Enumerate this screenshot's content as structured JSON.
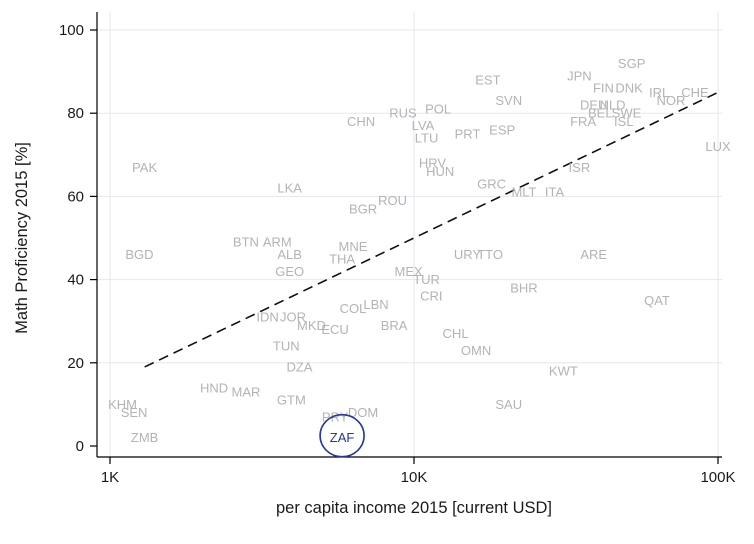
{
  "chart_data": {
    "type": "scatter",
    "title": "",
    "xlabel": "per capita income 2015 [current USD]",
    "ylabel": "Math Proficiency 2015 [%]",
    "x_scale": "log",
    "xlim": [
      1000,
      100000
    ],
    "ylim": [
      0,
      100
    ],
    "grid": true,
    "marker_style": "country-code-text",
    "x_ticks": [
      {
        "value": 1000,
        "label": "1K"
      },
      {
        "value": 10000,
        "label": "10K"
      },
      {
        "value": 100000,
        "label": "100K"
      }
    ],
    "y_ticks": [
      {
        "value": 0,
        "label": "0"
      },
      {
        "value": 20,
        "label": "20"
      },
      {
        "value": 40,
        "label": "40"
      },
      {
        "value": 60,
        "label": "60"
      },
      {
        "value": 80,
        "label": "80"
      },
      {
        "value": 100,
        "label": "100"
      }
    ],
    "colors": {
      "label": "#b3b3b8",
      "highlight": "#2438a0",
      "grid": "#e4e7ef",
      "axis": "#000000",
      "tick_text": "#1a1a1a",
      "title_text": "#1a1a1a"
    },
    "trend_line": {
      "style": "dashed",
      "color": "#111111",
      "points": [
        {
          "income": 1300,
          "math": 19
        },
        {
          "income": 100000,
          "math": 85
        }
      ]
    },
    "highlight": {
      "code": "ZAF",
      "note": "circled"
    },
    "points": [
      {
        "code": "SGP",
        "income": 52000,
        "math": 92
      },
      {
        "code": "JPN",
        "income": 35000,
        "math": 89
      },
      {
        "code": "EST",
        "income": 17500,
        "math": 88
      },
      {
        "code": "FIN",
        "income": 42000,
        "math": 86
      },
      {
        "code": "DNK",
        "income": 51000,
        "math": 86
      },
      {
        "code": "IRL",
        "income": 64000,
        "math": 85
      },
      {
        "code": "CHE",
        "income": 84000,
        "math": 85
      },
      {
        "code": "NOR",
        "income": 70000,
        "math": 83
      },
      {
        "code": "SVN",
        "income": 20500,
        "math": 83
      },
      {
        "code": "DEU",
        "income": 39000,
        "math": 82
      },
      {
        "code": "NLD",
        "income": 45000,
        "math": 82
      },
      {
        "code": "POL",
        "income": 12000,
        "math": 81
      },
      {
        "code": "BEL",
        "income": 41000,
        "math": 80
      },
      {
        "code": "SWE",
        "income": 50000,
        "math": 80
      },
      {
        "code": "RUS",
        "income": 9200,
        "math": 80
      },
      {
        "code": "CHN",
        "income": 6700,
        "math": 78
      },
      {
        "code": "FRA",
        "income": 36000,
        "math": 78
      },
      {
        "code": "ISL",
        "income": 49000,
        "math": 78
      },
      {
        "code": "LVA",
        "income": 10700,
        "math": 77
      },
      {
        "code": "ESP",
        "income": 19500,
        "math": 76
      },
      {
        "code": "PRT",
        "income": 15000,
        "math": 75
      },
      {
        "code": "LTU",
        "income": 11000,
        "math": 74
      },
      {
        "code": "LUX",
        "income": 100000,
        "math": 72
      },
      {
        "code": "HRV",
        "income": 11500,
        "math": 68
      },
      {
        "code": "PAK",
        "income": 1300,
        "math": 67
      },
      {
        "code": "ISR",
        "income": 35000,
        "math": 67
      },
      {
        "code": "HUN",
        "income": 12200,
        "math": 66
      },
      {
        "code": "GRC",
        "income": 18000,
        "math": 63
      },
      {
        "code": "LKA",
        "income": 3900,
        "math": 62
      },
      {
        "code": "ITA",
        "income": 29000,
        "math": 61
      },
      {
        "code": "MLT",
        "income": 23000,
        "math": 61
      },
      {
        "code": "ROU",
        "income": 8500,
        "math": 59
      },
      {
        "code": "BGR",
        "income": 6800,
        "math": 57
      },
      {
        "code": "BTN",
        "income": 2800,
        "math": 49
      },
      {
        "code": "ARM",
        "income": 3550,
        "math": 49
      },
      {
        "code": "MNE",
        "income": 6300,
        "math": 48
      },
      {
        "code": "BGD",
        "income": 1250,
        "math": 46
      },
      {
        "code": "ALB",
        "income": 3900,
        "math": 46
      },
      {
        "code": "URY",
        "income": 15000,
        "math": 46
      },
      {
        "code": "TTO",
        "income": 17800,
        "math": 46
      },
      {
        "code": "ARE",
        "income": 39000,
        "math": 46
      },
      {
        "code": "THA",
        "income": 5800,
        "math": 45
      },
      {
        "code": "GEO",
        "income": 3900,
        "math": 42
      },
      {
        "code": "MEX",
        "income": 9600,
        "math": 42
      },
      {
        "code": "TUR",
        "income": 11000,
        "math": 40
      },
      {
        "code": "BHR",
        "income": 23000,
        "math": 38
      },
      {
        "code": "CRI",
        "income": 11400,
        "math": 36
      },
      {
        "code": "QAT",
        "income": 63000,
        "math": 35
      },
      {
        "code": "LBN",
        "income": 7500,
        "math": 34
      },
      {
        "code": "COL",
        "income": 6300,
        "math": 33
      },
      {
        "code": "JOR",
        "income": 4000,
        "math": 31
      },
      {
        "code": "IDN",
        "income": 3300,
        "math": 31
      },
      {
        "code": "MKD",
        "income": 4600,
        "math": 29
      },
      {
        "code": "BRA",
        "income": 8600,
        "math": 29
      },
      {
        "code": "ECU",
        "income": 5500,
        "math": 28
      },
      {
        "code": "CHL",
        "income": 13700,
        "math": 27
      },
      {
        "code": "TUN",
        "income": 3800,
        "math": 24
      },
      {
        "code": "OMN",
        "income": 16000,
        "math": 23
      },
      {
        "code": "DZA",
        "income": 4200,
        "math": 19
      },
      {
        "code": "KWT",
        "income": 31000,
        "math": 18
      },
      {
        "code": "HND",
        "income": 2200,
        "math": 14
      },
      {
        "code": "MAR",
        "income": 2800,
        "math": 13
      },
      {
        "code": "GTM",
        "income": 3950,
        "math": 11
      },
      {
        "code": "SAU",
        "income": 20500,
        "math": 10
      },
      {
        "code": "KHM",
        "income": 1100,
        "math": 10
      },
      {
        "code": "SEN",
        "income": 1200,
        "math": 8
      },
      {
        "code": "DOM",
        "income": 6800,
        "math": 8
      },
      {
        "code": "PRY",
        "income": 5500,
        "math": 7
      },
      {
        "code": "ZMB",
        "income": 1300,
        "math": 2
      },
      {
        "code": "ZAF",
        "income": 5800,
        "math": 2,
        "highlighted": true
      }
    ]
  }
}
